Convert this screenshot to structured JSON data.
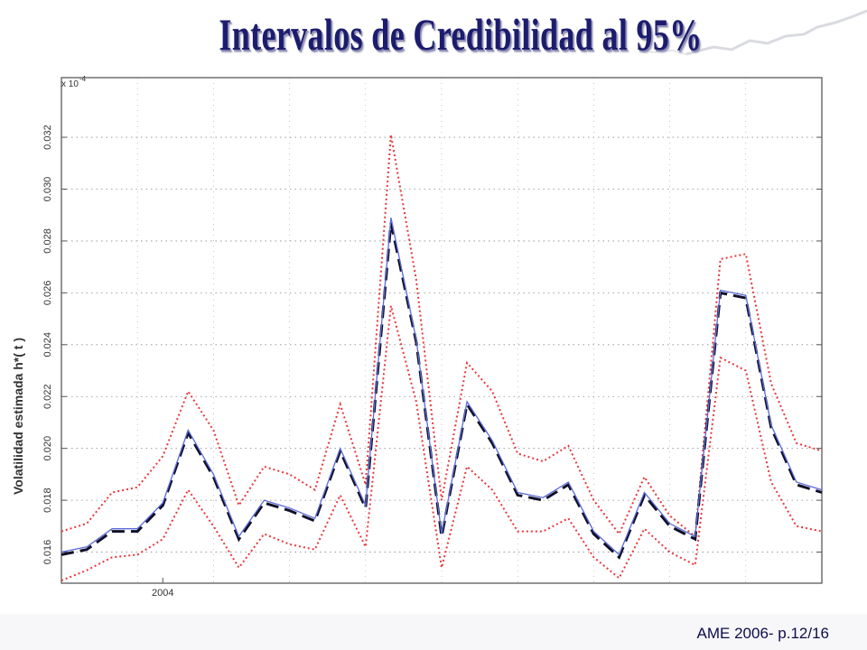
{
  "slide": {
    "title": "Intervalos de Credibilidad al 95%",
    "footer": "AME 2006- p.12/16"
  },
  "chart_data": {
    "type": "line",
    "ylabel": "Volatilidad estimada  h*( t )",
    "y_scale_label": "x 10",
    "y_scale_exponent": "-4",
    "ylim": [
      0.0148,
      0.0343
    ],
    "yticks": [
      0.016,
      0.018,
      0.02,
      0.022,
      0.024,
      0.026,
      0.028,
      0.03,
      0.032
    ],
    "ytick_labels": [
      "0.016",
      "0.018",
      "0.020",
      "0.022",
      "0.024",
      "0.026",
      "0.028",
      "0.030",
      "0.032"
    ],
    "xlim": [
      0,
      30
    ],
    "xticks": [
      4
    ],
    "xtick_labels": [
      "2004"
    ],
    "grid": true,
    "x": [
      0,
      1,
      2,
      3,
      4,
      5,
      6,
      7,
      8,
      9,
      10,
      11,
      12,
      13,
      14,
      15,
      16,
      17,
      18,
      19,
      20,
      21,
      22,
      23,
      24,
      25,
      26,
      27,
      28,
      29,
      30
    ],
    "series": [
      {
        "role": "upper-95",
        "style": "dotted",
        "color": "#e8373a",
        "values": [
          0.0168,
          0.0171,
          0.0183,
          0.0185,
          0.0197,
          0.0222,
          0.0207,
          0.0178,
          0.0193,
          0.019,
          0.0184,
          0.0217,
          0.0186,
          0.0321,
          0.0265,
          0.018,
          0.0233,
          0.0222,
          0.0198,
          0.0195,
          0.0201,
          0.018,
          0.0167,
          0.0189,
          0.0174,
          0.0166,
          0.0273,
          0.0275,
          0.0225,
          0.0202,
          0.0199
        ]
      },
      {
        "role": "estimate-dashed",
        "style": "dashed",
        "color": "#101028",
        "values": [
          0.0159,
          0.0161,
          0.0168,
          0.0168,
          0.0178,
          0.0206,
          0.0189,
          0.0165,
          0.0179,
          0.0176,
          0.0172,
          0.0199,
          0.0177,
          0.0287,
          0.0241,
          0.0166,
          0.0217,
          0.0202,
          0.0182,
          0.018,
          0.0186,
          0.0167,
          0.0158,
          0.0182,
          0.017,
          0.0165,
          0.026,
          0.0258,
          0.0208,
          0.0186,
          0.0183
        ]
      },
      {
        "role": "estimate-solid",
        "style": "solid",
        "color": "#5a6ad8",
        "values": [
          0.016,
          0.0162,
          0.0169,
          0.0169,
          0.0179,
          0.0207,
          0.019,
          0.0166,
          0.018,
          0.0177,
          0.0173,
          0.02,
          0.0178,
          0.0289,
          0.0242,
          0.0167,
          0.0218,
          0.0203,
          0.0183,
          0.0181,
          0.0187,
          0.0168,
          0.0159,
          0.0183,
          0.0171,
          0.0166,
          0.0261,
          0.0259,
          0.0209,
          0.0187,
          0.0184
        ]
      },
      {
        "role": "lower-95",
        "style": "dotted",
        "color": "#e8373a",
        "values": [
          0.0149,
          0.0153,
          0.0158,
          0.0159,
          0.0165,
          0.0184,
          0.017,
          0.0154,
          0.0167,
          0.0163,
          0.0161,
          0.0182,
          0.0162,
          0.0255,
          0.0218,
          0.0154,
          0.0193,
          0.0184,
          0.0168,
          0.0168,
          0.0173,
          0.0158,
          0.015,
          0.0169,
          0.016,
          0.0155,
          0.0235,
          0.023,
          0.0187,
          0.017,
          0.0168
        ]
      }
    ]
  }
}
